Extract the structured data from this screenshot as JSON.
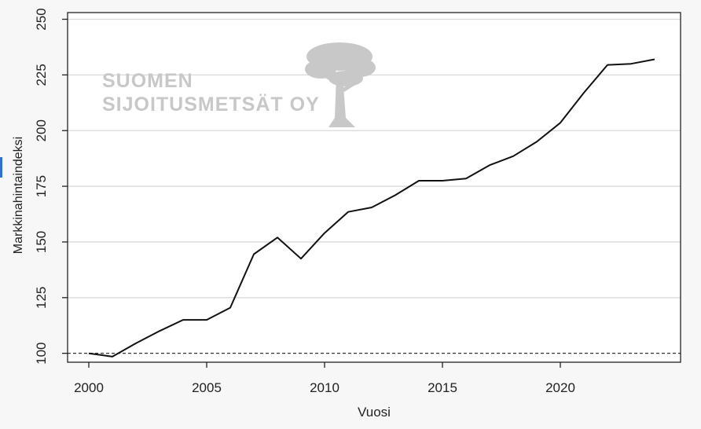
{
  "watermark": {
    "line1": "SUOMEN",
    "line2": "SIJOITUSMETSÄT OY"
  },
  "colors": {
    "background": "#f7f7f7",
    "plot_background": "#ffffff",
    "line": "#111111",
    "grid": "#d9d9d9",
    "watermark": "#c8c8c8"
  },
  "chart_data": {
    "type": "line",
    "title": "",
    "xlabel": "Vuosi",
    "ylabel": "Markkinahintaindeksi",
    "xlim": [
      1999.1,
      2025.1
    ],
    "ylim": [
      96,
      253
    ],
    "xticks": [
      2000,
      2005,
      2010,
      2015,
      2020
    ],
    "yticks": [
      100,
      125,
      150,
      175,
      200,
      225,
      250
    ],
    "grid": true,
    "grid_axis": "y",
    "reference_line": {
      "y": 100,
      "style": "dashed"
    },
    "series": [
      {
        "x": [
          2000,
          2001,
          2002,
          2003,
          2004,
          2005,
          2006,
          2007,
          2008,
          2009,
          2010,
          2011,
          2012,
          2013,
          2014,
          2015,
          2016,
          2017,
          2018,
          2019,
          2020,
          2021,
          2022,
          2023,
          2024
        ],
        "values": [
          100,
          98.5,
          104.5,
          110,
          115,
          115,
          120.5,
          144.5,
          152,
          142.5,
          154,
          163.5,
          165.5,
          171,
          177.5,
          177.5,
          178.5,
          184.5,
          188.5,
          195,
          203.5,
          217,
          229.5,
          230,
          232
        ]
      }
    ]
  }
}
